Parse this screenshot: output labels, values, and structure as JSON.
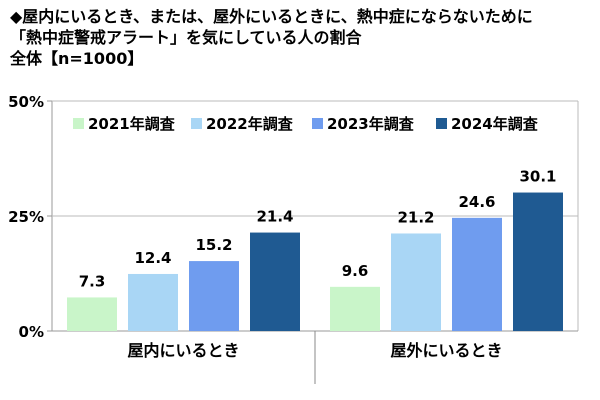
{
  "title": {
    "line1": "◆屋内にいるとき、または、屋外にいるときに、熱中症にならないために",
    "line2": "「熱中症警戒アラート」を気にしている人の割合",
    "line3": "全体【n=1000】"
  },
  "colors": {
    "2021年調査": "#c9f5c9",
    "2022年調査": "#a9d6f5",
    "2023年調査": "#6f9cef",
    "2024年調査": "#1f5a92"
  },
  "chart_data": {
    "type": "bar",
    "categories": [
      "屋内にいるとき",
      "屋外にいるとき"
    ],
    "series": [
      {
        "name": "2021年調査",
        "values": [
          7.3,
          9.6
        ]
      },
      {
        "name": "2022年調査",
        "values": [
          12.4,
          21.2
        ]
      },
      {
        "name": "2023年調査",
        "values": [
          15.2,
          24.6
        ]
      },
      {
        "name": "2024年調査",
        "values": [
          21.4,
          30.1
        ]
      }
    ],
    "ylim": [
      0,
      50
    ],
    "yticks": [
      "0%",
      "25%",
      "50%"
    ],
    "grid": true,
    "legend": "top"
  }
}
